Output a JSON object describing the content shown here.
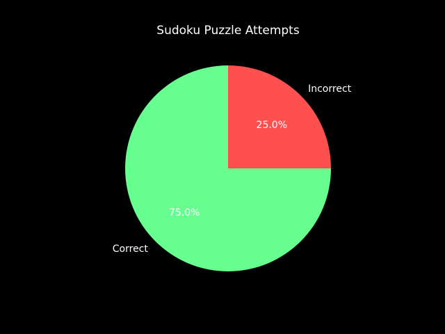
{
  "chart_data": {
    "type": "pie",
    "title": "Sudoku Puzzle Attempts",
    "slices": [
      {
        "label": "Incorrect",
        "value": 25.0,
        "pct_label": "25.0%",
        "color": "#ff5050"
      },
      {
        "label": "Correct",
        "value": 75.0,
        "pct_label": "75.0%",
        "color": "#66ff90"
      }
    ],
    "start_angle_deg": 90,
    "direction": "clockwise"
  },
  "colors": {
    "background": "#000000",
    "text": "#ffffff"
  }
}
